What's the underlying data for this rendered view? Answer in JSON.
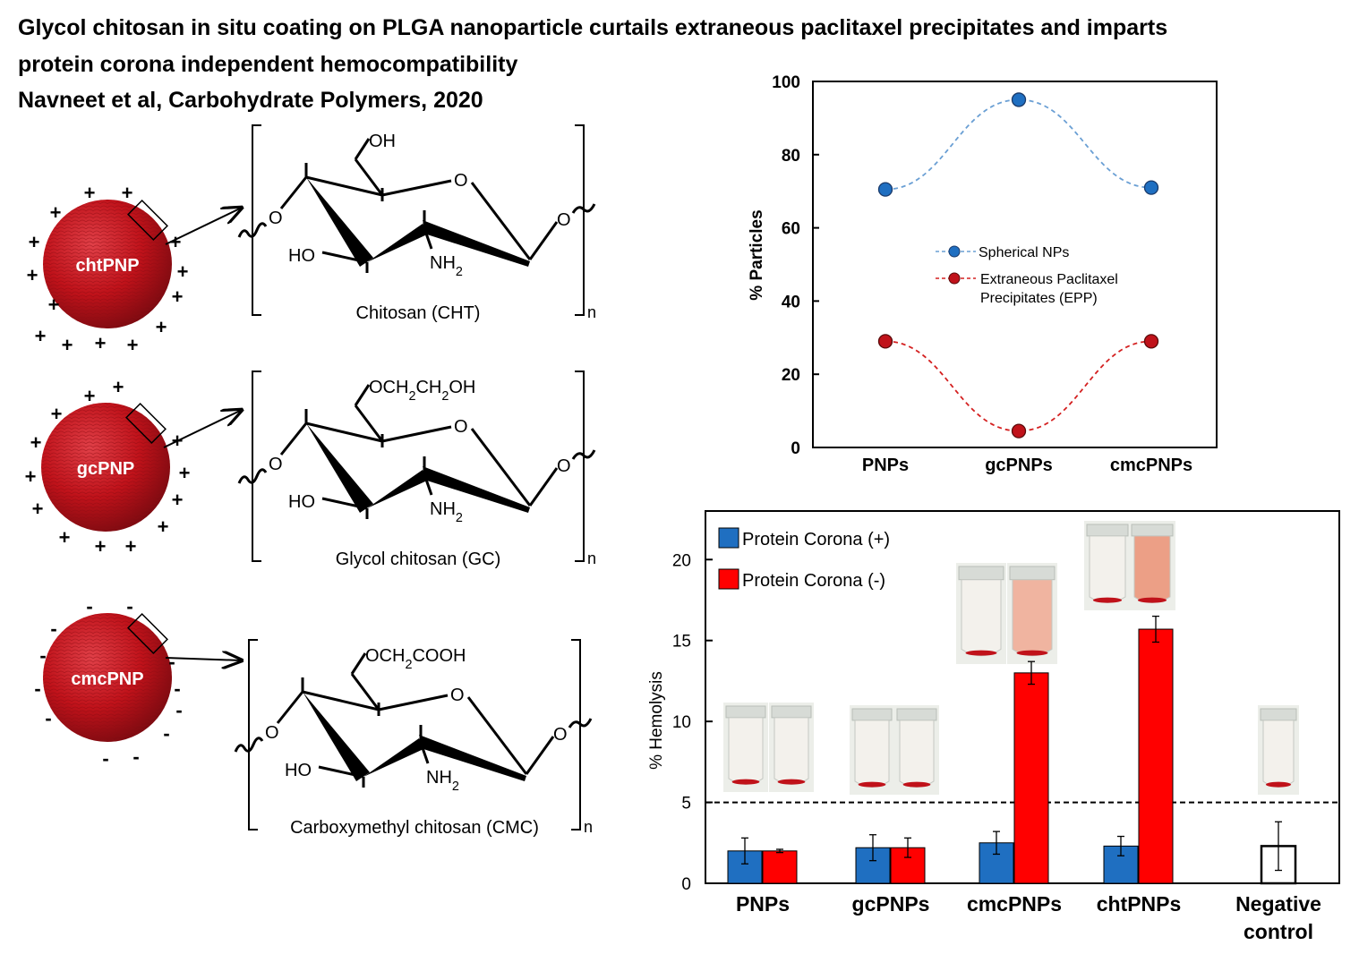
{
  "header": {
    "title_line1": "Glycol chitosan in situ coating on PLGA nanoparticle curtails extraneous paclitaxel precipitates and imparts",
    "title_line2": "protein corona independent hemocompatibility",
    "citation": "Navneet et al, Carbohydrate Polymers, 2020"
  },
  "colors": {
    "particle_red": "#c0121a",
    "blue_series": "#1f6fc1",
    "red_series": "#ff0000",
    "dashed_blue": "#6a9fd4",
    "dashed_red": "#d42020"
  },
  "schematic": {
    "particles": [
      {
        "label": "chtPNP",
        "charge": "+",
        "polymer_caption": "Chitosan (CHT)",
        "sidechain": "OH",
        "amine": "NH2"
      },
      {
        "label": "gcPNP",
        "charge": "+",
        "polymer_caption": "Glycol chitosan (GC)",
        "sidechain": "OCH2CH2OH",
        "amine": "NH2"
      },
      {
        "label": "cmcPNP",
        "charge": "-",
        "polymer_caption": "Carboxymethyl chitosan (CMC)",
        "sidechain": "OCH2COOH",
        "amine": "NH2"
      }
    ],
    "atoms": {
      "ring_o": "O",
      "glyco_o": "O",
      "hydroxyl": "HO",
      "repeat": "n"
    }
  },
  "chart_data": [
    {
      "type": "line",
      "title": "",
      "xlabel": "",
      "ylabel": "% Particles",
      "categories": [
        "PNPs",
        "gcPNPs",
        "cmcPNPs"
      ],
      "ylim": [
        0,
        100
      ],
      "yticks": [
        0,
        20,
        40,
        60,
        80,
        100
      ],
      "legend_position": "center-right",
      "series": [
        {
          "name": "Spherical NPs",
          "values": [
            70.5,
            95,
            71
          ],
          "color": "#1f6fc1"
        },
        {
          "name": "Extraneous Paclitaxel Precipitates (EPP)",
          "values": [
            29,
            4.5,
            29
          ],
          "color": "#c0121a"
        }
      ]
    },
    {
      "type": "bar",
      "title": "",
      "xlabel": "",
      "ylabel": "% Hemolysis",
      "categories": [
        "PNPs",
        "gcPNPs",
        "cmcPNPs",
        "chtPNPs",
        "Negative control"
      ],
      "ylim": [
        0,
        23
      ],
      "yticks": [
        0,
        5,
        10,
        15,
        20
      ],
      "threshold_line": 5,
      "legend_position": "top-left",
      "series": [
        {
          "name": "Protein Corona (+)",
          "values": [
            2.0,
            2.2,
            2.5,
            2.3,
            null
          ],
          "errors": [
            0.8,
            0.8,
            0.7,
            0.6,
            null
          ],
          "color": "#1f6fc1"
        },
        {
          "name": "Protein Corona (-)",
          "values": [
            2.0,
            2.2,
            13.0,
            15.7,
            null
          ],
          "errors": [
            0.1,
            0.6,
            0.7,
            0.8,
            null
          ],
          "color": "#ff0000"
        },
        {
          "name": "",
          "values": [
            null,
            null,
            null,
            null,
            2.3
          ],
          "errors": [
            null,
            null,
            null,
            null,
            1.5
          ],
          "color": "#ffffff"
        }
      ]
    }
  ]
}
